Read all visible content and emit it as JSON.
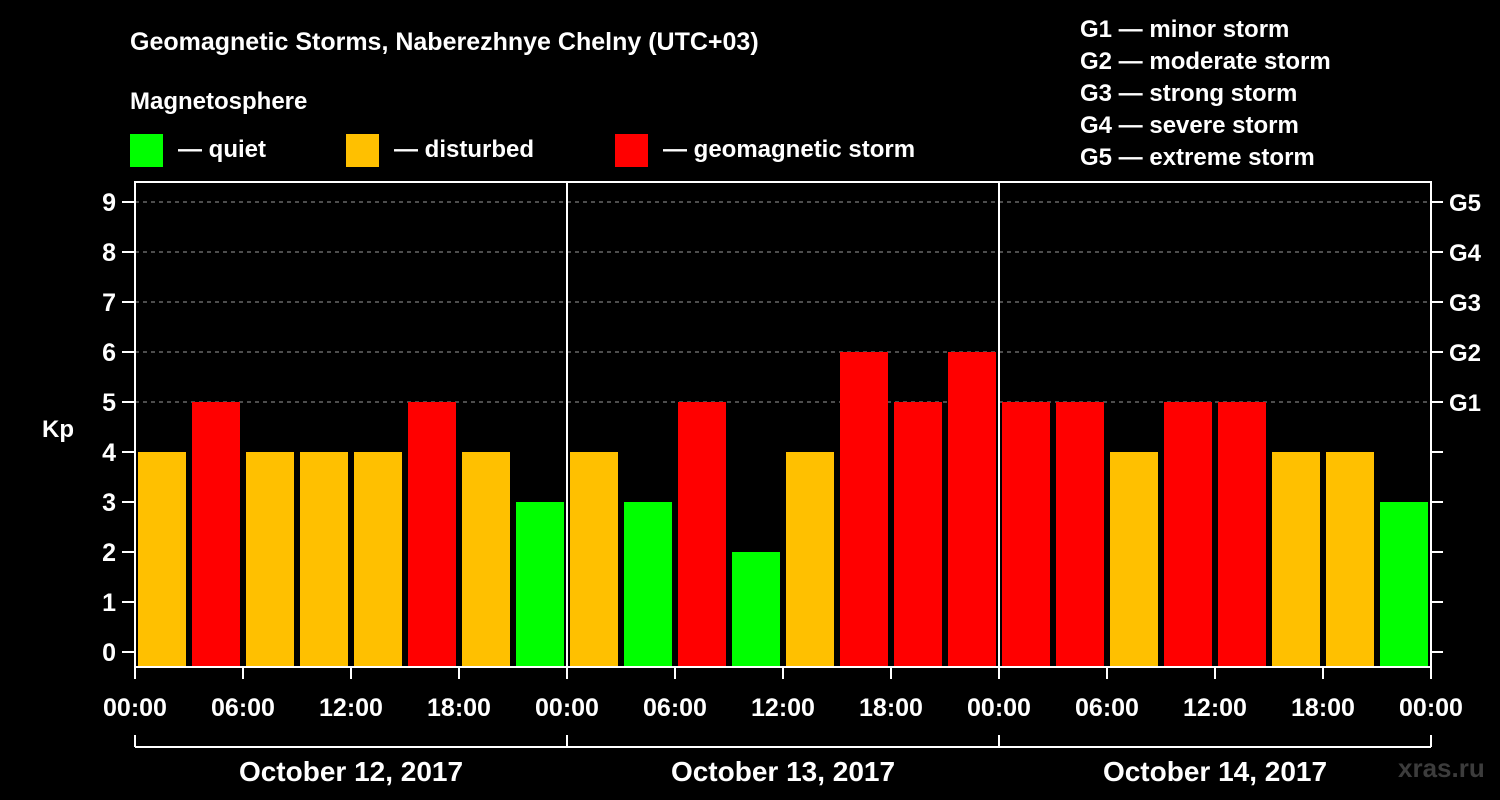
{
  "chart_data": {
    "type": "bar",
    "title": "Geomagnetic Storms, Naberezhnye Chelny (UTC+03)",
    "ylabel": "Kp",
    "ylim": [
      0,
      9
    ],
    "yticks": [
      "0",
      "1",
      "2",
      "3",
      "4",
      "5",
      "6",
      "7",
      "8",
      "9"
    ],
    "x_ticks": [
      "00:00",
      "06:00",
      "12:00",
      "18:00",
      "00:00",
      "06:00",
      "12:00",
      "18:00",
      "00:00",
      "06:00",
      "12:00",
      "18:00",
      "00:00"
    ],
    "days": [
      "October 12, 2017",
      "October 13, 2017",
      "October 14, 2017"
    ],
    "interval_hours": 3,
    "values": [
      4,
      5,
      4,
      4,
      4,
      5,
      4,
      3,
      4,
      3,
      5,
      2,
      4,
      6,
      5,
      6,
      5,
      5,
      4,
      5,
      5,
      4,
      4,
      3
    ],
    "g_levels": [
      {
        "kp": 5,
        "label": "G1"
      },
      {
        "kp": 6,
        "label": "G2"
      },
      {
        "kp": 7,
        "label": "G3"
      },
      {
        "kp": 8,
        "label": "G4"
      },
      {
        "kp": 9,
        "label": "G5"
      }
    ],
    "grid": "dashed horizontal",
    "legend_placement": "top-left"
  },
  "legend": {
    "heading": "Magnetosphere",
    "items": [
      {
        "label": "— quiet",
        "color": "#00ff00"
      },
      {
        "label": "— disturbed",
        "color": "#ffc000"
      },
      {
        "label": "— geomagnetic storm",
        "color": "#ff0000"
      }
    ]
  },
  "storm_scale": [
    "G1 — minor storm",
    "G2 — moderate storm",
    "G3 — strong storm",
    "G4 — severe storm",
    "G5 — extreme storm"
  ],
  "colors": {
    "quiet": "#00ff00",
    "disturbed": "#ffc000",
    "storm": "#ff0000"
  },
  "credit": "xras.ru"
}
